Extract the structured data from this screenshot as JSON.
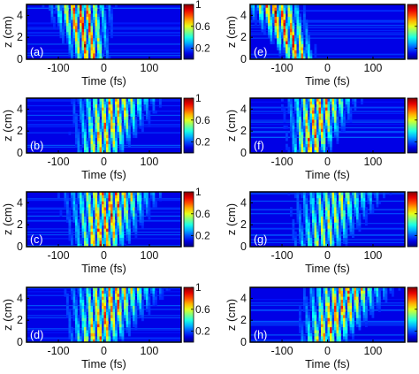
{
  "chart_data": {
    "type": "heatmap",
    "colormap": "jet",
    "colorbar": {
      "range": [
        0,
        1
      ],
      "ticks": [
        "0.2",
        "0.6",
        "1"
      ]
    },
    "xlabel": "Time (fs)",
    "ylabel": "z (cm)",
    "xlim": [
      -170,
      170
    ],
    "ylim": [
      0,
      5
    ],
    "x_ticks": [
      "-100",
      "0",
      "100"
    ],
    "y_ticks": [
      "0",
      "2",
      "4"
    ],
    "panels": [
      {
        "label": "(a)",
        "center_fs": -30,
        "width_fs": 40,
        "slope": -5,
        "intensity": 0.85
      },
      {
        "label": "(b)",
        "center_fs": -10,
        "width_fs": 55,
        "slope": 8,
        "intensity": 0.7
      },
      {
        "label": "(c)",
        "center_fs": -10,
        "width_fs": 60,
        "slope": 6,
        "intensity": 0.8
      },
      {
        "label": "(d)",
        "center_fs": -20,
        "width_fs": 60,
        "slope": 10,
        "intensity": 0.75
      },
      {
        "label": "(e)",
        "center_fs": -60,
        "width_fs": 35,
        "slope": -12,
        "intensity": 0.85
      },
      {
        "label": "(f)",
        "center_fs": -40,
        "width_fs": 45,
        "slope": 6,
        "intensity": 0.75
      },
      {
        "label": "(g)",
        "center_fs": -20,
        "width_fs": 60,
        "slope": 10,
        "intensity": 0.55
      },
      {
        "label": "(h)",
        "center_fs": -10,
        "width_fs": 55,
        "slope": 12,
        "intensity": 0.75
      }
    ]
  }
}
